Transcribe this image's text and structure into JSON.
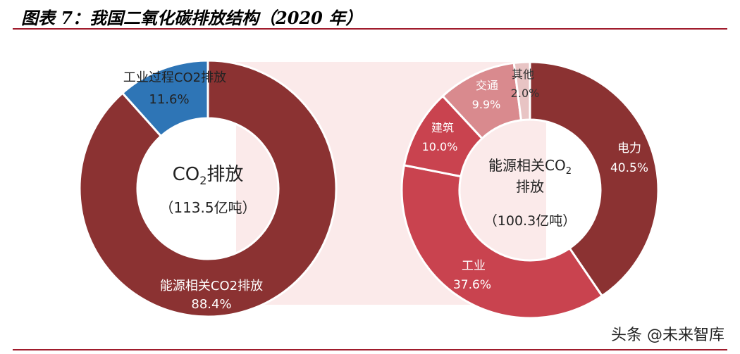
{
  "page": {
    "title": "图表 7：我国二氧化碳排放结构（2020 年）",
    "watermark": "头条 @未来智库"
  },
  "colors": {
    "rule": "#a01b2c",
    "panel": "#fbeaea",
    "dark_red": "#8b3232",
    "mid_red": "#c9434f",
    "pink": "#d98a8e",
    "light_pink": "#e8c4c4",
    "blue": "#2e75b6"
  },
  "chart_data": [
    {
      "type": "pie",
      "donut": true,
      "center_label": {
        "line1_main": "CO",
        "line1_sub": "2",
        "line1_tail": "排放",
        "line2": "（113.5亿吨）"
      },
      "slices": [
        {
          "name": "能源相关CO2排放",
          "value": 88.4,
          "label": "88.4%",
          "color": "#8b3232"
        },
        {
          "name": "工业过程CO2排放",
          "value": 11.6,
          "label": "11.6%",
          "color": "#2e75b6"
        }
      ]
    },
    {
      "type": "pie",
      "donut": true,
      "center_label": {
        "line1": "能源相关CO",
        "line1_sub": "2",
        "line2": "排放",
        "line3": "（100.3亿吨）"
      },
      "slices": [
        {
          "name": "电力",
          "value": 40.5,
          "label": "40.5%",
          "color": "#8b3232"
        },
        {
          "name": "工业",
          "value": 37.6,
          "label": "37.6%",
          "color": "#c9434f"
        },
        {
          "name": "建筑",
          "value": 10.0,
          "label": "10.0%",
          "color": "#c9434f"
        },
        {
          "name": "交通",
          "value": 9.9,
          "label": "9.9%",
          "color": "#d98a8e"
        },
        {
          "name": "其他",
          "value": 2.0,
          "label": "2.0%",
          "color": "#e8c4c4"
        }
      ]
    }
  ]
}
